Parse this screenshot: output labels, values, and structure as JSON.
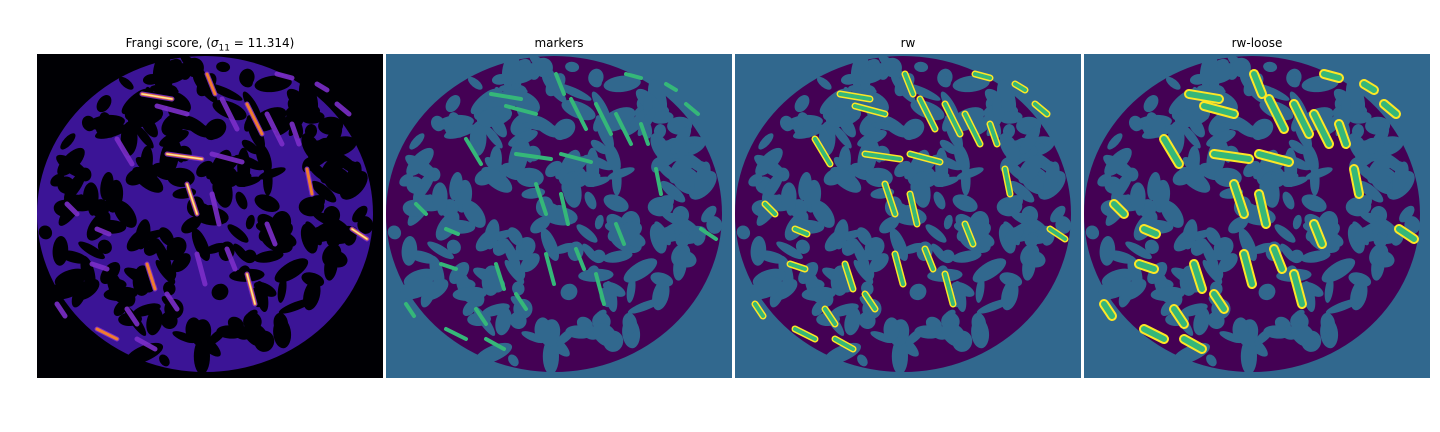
{
  "figure": {
    "panels": [
      {
        "id": "frangi",
        "title_prefix": "Frangi score, (",
        "sigma_symbol": "σ",
        "sigma_index": "11",
        "title_suffix": " = 11.314)",
        "colormap": "magma",
        "colors": {
          "background": "#000004",
          "base": "#3b1496",
          "ridge": "#7c2ec9",
          "peak": "#f07c2f",
          "hot": "#fde39c"
        }
      },
      {
        "id": "markers",
        "title": "markers",
        "colormap": "viridis",
        "colors": {
          "background": "#31688e",
          "region": "#440154",
          "marker": "#35b779"
        }
      },
      {
        "id": "rw",
        "title": "rw",
        "colormap": "viridis",
        "colors": {
          "background": "#31688e",
          "region": "#440154",
          "segment": "#35b779",
          "edge": "#fde725"
        }
      },
      {
        "id": "rw-loose",
        "title": "rw-loose",
        "colormap": "viridis",
        "colors": {
          "background": "#31688e",
          "region": "#440154",
          "segment": "#35b779",
          "edge": "#fde725"
        }
      }
    ]
  }
}
